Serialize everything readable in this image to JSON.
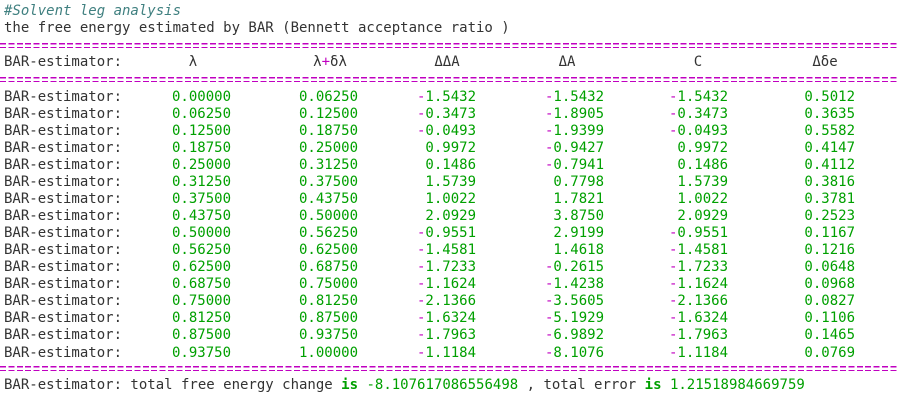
{
  "comment": "#Solvent leg analysis",
  "subtitle": "the free energy estimated by BAR (Bennett acceptance ratio )",
  "table": {
    "header": [
      "BAR-estimator:",
      "λ",
      "λ+δλ",
      "ΔΔA",
      "ΔA",
      "C",
      "Δδe"
    ],
    "rows": [
      [
        "BAR-estimator:",
        "0.00000",
        "0.06250",
        "-1.5432",
        "-1.5432",
        "-1.5432",
        "0.5012"
      ],
      [
        "BAR-estimator:",
        "0.06250",
        "0.12500",
        "-0.3473",
        "-1.8905",
        "-0.3473",
        "0.3635"
      ],
      [
        "BAR-estimator:",
        "0.12500",
        "0.18750",
        "-0.0493",
        "-1.9399",
        "-0.0493",
        "0.5582"
      ],
      [
        "BAR-estimator:",
        "0.18750",
        "0.25000",
        "0.9972",
        "-0.9427",
        "0.9972",
        "0.4147"
      ],
      [
        "BAR-estimator:",
        "0.25000",
        "0.31250",
        "0.1486",
        "-0.7941",
        "0.1486",
        "0.4112"
      ],
      [
        "BAR-estimator:",
        "0.31250",
        "0.37500",
        "1.5739",
        "0.7798",
        "1.5739",
        "0.3816"
      ],
      [
        "BAR-estimator:",
        "0.37500",
        "0.43750",
        "1.0022",
        "1.7821",
        "1.0022",
        "0.3781"
      ],
      [
        "BAR-estimator:",
        "0.43750",
        "0.50000",
        "2.0929",
        "3.8750",
        "2.0929",
        "0.2523"
      ],
      [
        "BAR-estimator:",
        "0.50000",
        "0.56250",
        "-0.9551",
        "2.9199",
        "-0.9551",
        "0.1167"
      ],
      [
        "BAR-estimator:",
        "0.56250",
        "0.62500",
        "-1.4581",
        "1.4618",
        "-1.4581",
        "0.1216"
      ],
      [
        "BAR-estimator:",
        "0.62500",
        "0.68750",
        "-1.7233",
        "-0.2615",
        "-1.7233",
        "0.0648"
      ],
      [
        "BAR-estimator:",
        "0.68750",
        "0.75000",
        "-1.1624",
        "-1.4238",
        "-1.1624",
        "0.0968"
      ],
      [
        "BAR-estimator:",
        "0.75000",
        "0.81250",
        "-2.1366",
        "-3.5605",
        "-2.1366",
        "0.0827"
      ],
      [
        "BAR-estimator:",
        "0.81250",
        "0.87500",
        "-1.6324",
        "-5.1929",
        "-1.6324",
        "0.1106"
      ],
      [
        "BAR-estimator:",
        "0.87500",
        "0.93750",
        "-1.7963",
        "-6.9892",
        "-1.7963",
        "0.1465"
      ],
      [
        "BAR-estimator:",
        "0.93750",
        "1.00000",
        "-1.1184",
        "-8.1076",
        "-1.1184",
        "0.0769"
      ]
    ]
  },
  "summary": {
    "prefix": "BAR-estimator: total free energy change",
    "keyword": "is",
    "total_change": "-8.107617086556498",
    "separator": ", total error",
    "total_error": "1.21518984669759"
  }
}
